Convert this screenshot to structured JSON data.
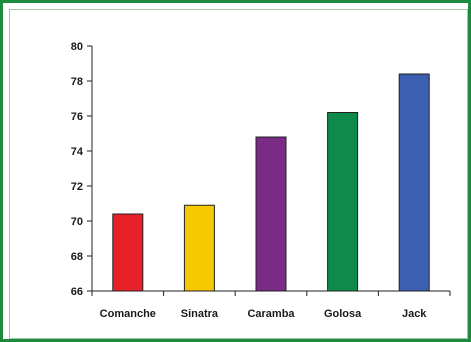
{
  "chart_data": {
    "type": "bar",
    "title": "",
    "xlabel": "",
    "ylabel": "",
    "categories": [
      "Comanche",
      "Sinatra",
      "Caramba",
      "Golosa",
      "Jack"
    ],
    "values": [
      70.4,
      70.9,
      74.8,
      76.2,
      78.4
    ],
    "bar_colors": [
      "#e8202a",
      "#f6c800",
      "#7b2a86",
      "#0e8a4a",
      "#3c5fb0"
    ],
    "ylim": [
      66,
      80
    ],
    "yticks": [
      66,
      68,
      70,
      72,
      74,
      76,
      78,
      80
    ],
    "grid": false,
    "legend": "none"
  },
  "frame": {
    "border_color": "#1e8a3c"
  }
}
